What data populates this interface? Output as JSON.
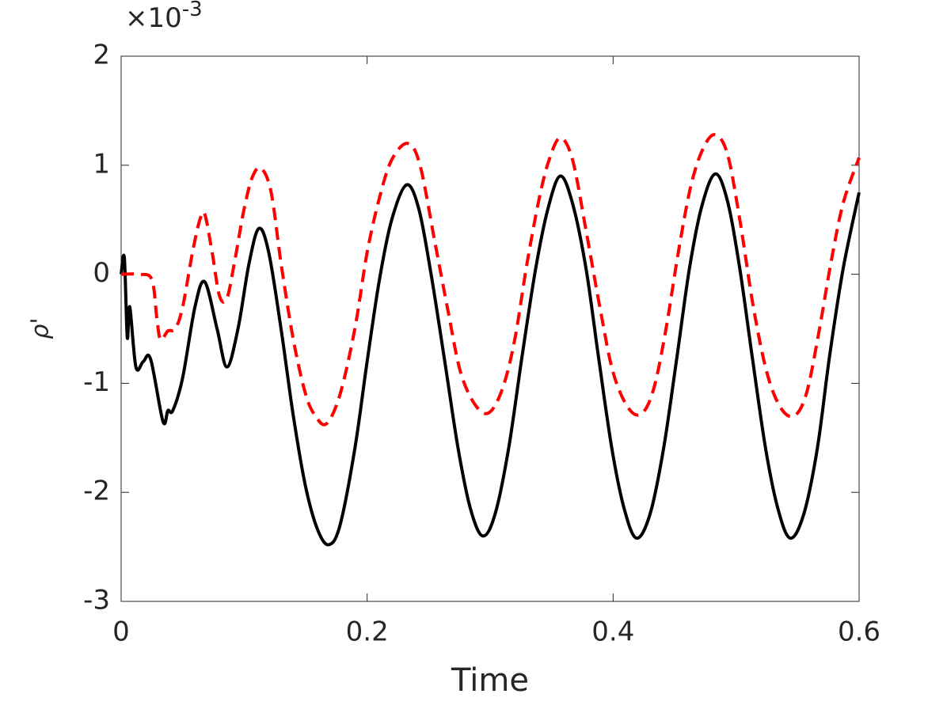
{
  "chart_data": {
    "type": "line",
    "xlabel": "Time",
    "ylabel": "ρ'",
    "y_multiplier": "×10",
    "y_multiplier_exponent": "-3",
    "xlim": [
      0,
      0.6
    ],
    "xticks": [
      0,
      0.2,
      0.4,
      0.6
    ],
    "ylim": [
      -3,
      2
    ],
    "yticks": [
      -3,
      -2,
      -1,
      0,
      1,
      2
    ],
    "grid": false,
    "series": [
      {
        "color": "#000000",
        "dash": "solid",
        "x": [
          0,
          0.0026,
          0.005,
          0.007,
          0.012,
          0.018,
          0.024,
          0.034,
          0.038,
          0.042,
          0.05,
          0.06,
          0.068,
          0.078,
          0.086,
          0.095,
          0.104,
          0.112,
          0.12,
          0.13,
          0.14,
          0.15,
          0.16,
          0.169,
          0.178,
          0.19,
          0.2,
          0.21,
          0.22,
          0.232,
          0.242,
          0.252,
          0.263,
          0.274,
          0.284,
          0.294,
          0.304,
          0.315,
          0.326,
          0.337,
          0.347,
          0.357,
          0.367,
          0.378,
          0.388,
          0.399,
          0.409,
          0.419,
          0.43,
          0.441,
          0.452,
          0.462,
          0.472,
          0.483,
          0.493,
          0.503,
          0.513,
          0.524,
          0.534,
          0.544,
          0.555,
          0.566,
          0.576,
          0.587,
          0.6
        ],
        "values": [
          0,
          0.15,
          -0.58,
          -0.3,
          -0.85,
          -0.8,
          -0.78,
          -1.35,
          -1.25,
          -1.25,
          -0.95,
          -0.3,
          -0.07,
          -0.5,
          -0.85,
          -0.5,
          0.1,
          0.42,
          0.2,
          -0.5,
          -1.3,
          -1.95,
          -2.35,
          -2.48,
          -2.3,
          -1.6,
          -0.8,
          -0.05,
          0.5,
          0.82,
          0.6,
          0.0,
          -0.79,
          -1.6,
          -2.15,
          -2.4,
          -2.2,
          -1.6,
          -0.75,
          0.05,
          0.6,
          0.9,
          0.65,
          0.05,
          -0.75,
          -1.6,
          -2.15,
          -2.42,
          -2.2,
          -1.6,
          -0.75,
          0.05,
          0.62,
          0.92,
          0.67,
          0.05,
          -0.75,
          -1.6,
          -2.15,
          -2.42,
          -2.2,
          -1.6,
          -0.75,
          0.05,
          0.75
        ]
      },
      {
        "color": "#ff0000",
        "dash": "dashed",
        "x": [
          0,
          0.015,
          0.025,
          0.029,
          0.032,
          0.038,
          0.044,
          0.05,
          0.058,
          0.064,
          0.068,
          0.074,
          0.08,
          0.086,
          0.092,
          0.1,
          0.107,
          0.114,
          0.122,
          0.13,
          0.14,
          0.15,
          0.158,
          0.167,
          0.178,
          0.19,
          0.2,
          0.21,
          0.22,
          0.233,
          0.243,
          0.255,
          0.266,
          0.276,
          0.288,
          0.299,
          0.31,
          0.32,
          0.33,
          0.34,
          0.348,
          0.357,
          0.367,
          0.378,
          0.39,
          0.4,
          0.412,
          0.423,
          0.433,
          0.443,
          0.453,
          0.463,
          0.473,
          0.483,
          0.493,
          0.503,
          0.514,
          0.525,
          0.536,
          0.547,
          0.557,
          0.567,
          0.577,
          0.587,
          0.6
        ],
        "values": [
          0,
          0,
          -0.05,
          -0.4,
          -0.6,
          -0.52,
          -0.5,
          -0.3,
          0.2,
          0.5,
          0.55,
          0.2,
          -0.2,
          -0.22,
          0.1,
          0.6,
          0.9,
          0.97,
          0.75,
          0.1,
          -0.6,
          -1.1,
          -1.3,
          -1.37,
          -1.1,
          -0.5,
          0.2,
          0.7,
          1.05,
          1.2,
          1.0,
          0.3,
          -0.35,
          -0.9,
          -1.2,
          -1.27,
          -1.05,
          -0.6,
          0.1,
          0.7,
          1.05,
          1.25,
          1.05,
          0.4,
          -0.35,
          -0.9,
          -1.22,
          -1.28,
          -1.05,
          -0.5,
          0.2,
          0.8,
          1.15,
          1.28,
          1.1,
          0.5,
          -0.3,
          -0.9,
          -1.22,
          -1.3,
          -1.1,
          -0.55,
          0.1,
          0.65,
          1.07
        ]
      }
    ]
  }
}
